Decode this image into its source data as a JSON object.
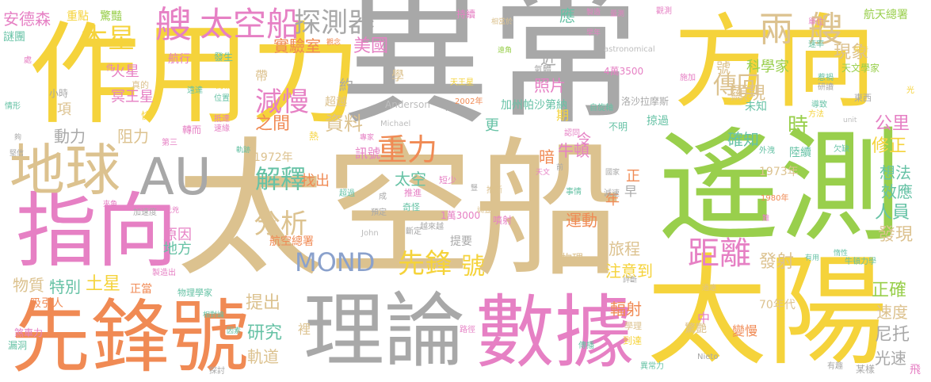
{
  "palette": {
    "yellow": "#f5d33b",
    "gray": "#a8a8a8",
    "green": "#99cf4c",
    "tan": "#dcc28f",
    "orange": "#f08a54",
    "pink": "#e680c4",
    "blue": "#8aa1cc",
    "teal": "#66c2a5",
    "lightgray": "#bdbdbd",
    "lightyellow": "#ffe36a"
  },
  "words": [
    {
      "text": "異常",
      "color": "gray"
    },
    {
      "text": "作用力",
      "color": "yellow"
    },
    {
      "text": "太空船",
      "color": "tan"
    },
    {
      "text": "遙測",
      "color": "green"
    },
    {
      "text": "方向",
      "color": "yellow"
    },
    {
      "text": "太陽",
      "color": "yellow"
    },
    {
      "text": "先鋒號",
      "color": "orange"
    },
    {
      "text": "理論",
      "color": "gray"
    },
    {
      "text": "數據",
      "color": "pink"
    },
    {
      "text": "指向",
      "color": "pink"
    },
    {
      "text": "地球",
      "color": "tan"
    },
    {
      "text": "AU",
      "color": "gray"
    },
    {
      "text": "艘",
      "color": "pink"
    },
    {
      "text": "太空船",
      "color": "pink"
    },
    {
      "text": "探測器",
      "color": "gray"
    },
    {
      "text": "兩艘",
      "color": "tan"
    },
    {
      "text": "木星",
      "color": "yellow"
    },
    {
      "text": "MOND",
      "color": "blue"
    },
    {
      "text": "先鋒",
      "color": "yellow"
    },
    {
      "text": "號",
      "color": "yellow"
    },
    {
      "text": "距離",
      "color": "pink"
    },
    {
      "text": "減慢",
      "color": "pink"
    },
    {
      "text": "重力",
      "color": "orange"
    },
    {
      "text": "解釋",
      "color": "teal"
    },
    {
      "text": "分析",
      "color": "tan"
    },
    {
      "text": "傳回",
      "color": "tan"
    },
    {
      "text": "安德森",
      "color": "pink"
    },
    {
      "text": "美國",
      "color": "pink"
    },
    {
      "text": "實驗室",
      "color": "orange"
    },
    {
      "text": "現象",
      "color": "tan"
    },
    {
      "text": "科學家",
      "color": "green"
    },
    {
      "text": "顯現",
      "color": "tan"
    },
    {
      "text": "時",
      "color": "green"
    },
    {
      "text": "公里",
      "color": "pink"
    },
    {
      "text": "確知",
      "color": "teal"
    },
    {
      "text": "修正",
      "color": "yellow"
    },
    {
      "text": "想法",
      "color": "teal"
    },
    {
      "text": "效應",
      "color": "teal"
    },
    {
      "text": "人員",
      "color": "teal"
    },
    {
      "text": "發現",
      "color": "tan"
    },
    {
      "text": "發射",
      "color": "tan"
    },
    {
      "text": "正確",
      "color": "green"
    },
    {
      "text": "速度",
      "color": "tan"
    },
    {
      "text": "尼托",
      "color": "gray"
    },
    {
      "text": "光速",
      "color": "gray"
    },
    {
      "text": "旅程",
      "color": "tan"
    },
    {
      "text": "運動",
      "color": "orange"
    },
    {
      "text": "注意到",
      "color": "yellow"
    },
    {
      "text": "輻射",
      "color": "orange"
    },
    {
      "text": "物質",
      "color": "tan"
    },
    {
      "text": "特別",
      "color": "teal"
    },
    {
      "text": "土星",
      "color": "yellow"
    },
    {
      "text": "吸引人",
      "color": "orange"
    },
    {
      "text": "提出",
      "color": "tan"
    },
    {
      "text": "研究",
      "color": "teal"
    },
    {
      "text": "軌道",
      "color": "tan"
    },
    {
      "text": "原因",
      "color": "pink"
    },
    {
      "text": "地方",
      "color": "teal"
    },
    {
      "text": "阻力",
      "color": "tan"
    },
    {
      "text": "動力",
      "color": "gray"
    },
    {
      "text": "資料",
      "color": "tan"
    },
    {
      "text": "之間",
      "color": "orange"
    },
    {
      "text": "找出",
      "color": "orange"
    },
    {
      "text": "太空",
      "color": "teal"
    },
    {
      "text": "牛頓",
      "color": "pink"
    },
    {
      "text": "照片",
      "color": "pink"
    },
    {
      "text": "火星",
      "color": "pink"
    },
    {
      "text": "冥王星",
      "color": "pink"
    },
    {
      "text": "1972年",
      "color": "tan"
    },
    {
      "text": "1973年",
      "color": "tan"
    },
    {
      "text": "70年代",
      "color": "tan"
    },
    {
      "text": "航空總署",
      "color": "orange"
    },
    {
      "text": "訊號",
      "color": "pink"
    },
    {
      "text": "航天總署",
      "color": "green"
    },
    {
      "text": "天文學家",
      "color": "green"
    },
    {
      "text": "Anderson",
      "color": "lightgray"
    },
    {
      "text": "1萬3000",
      "color": "pink"
    },
    {
      "text": "4萬3500",
      "color": "pink"
    },
    {
      "text": "物理",
      "color": "tan"
    },
    {
      "text": "項",
      "color": "tan"
    },
    {
      "text": "超越",
      "color": "tan"
    },
    {
      "text": "約",
      "color": "gray"
    },
    {
      "text": "學",
      "color": "tan"
    },
    {
      "text": "近",
      "color": "gray"
    },
    {
      "text": "暗",
      "color": "orange"
    },
    {
      "text": "更",
      "color": "teal"
    },
    {
      "text": "令",
      "color": "pink"
    },
    {
      "text": "年",
      "color": "orange"
    },
    {
      "text": "正",
      "color": "orange"
    },
    {
      "text": "早",
      "color": "gray"
    },
    {
      "text": "中",
      "color": "pink"
    },
    {
      "text": "裡",
      "color": "tan"
    },
    {
      "text": "應",
      "color": "teal"
    },
    {
      "text": "帶",
      "color": "tan"
    },
    {
      "text": "航行",
      "color": "pink"
    },
    {
      "text": "發生",
      "color": "teal"
    },
    {
      "text": "期",
      "color": "yellow"
    },
    {
      "text": "號",
      "color": "tan"
    },
    {
      "text": "未知",
      "color": "teal"
    },
    {
      "text": "陸續",
      "color": "teal"
    },
    {
      "text": "掠過",
      "color": "teal"
    },
    {
      "text": "重點",
      "color": "yellow"
    },
    {
      "text": "驚豔",
      "color": "green"
    },
    {
      "text": "持續",
      "color": "pink"
    },
    {
      "text": "謎團",
      "color": "teal"
    },
    {
      "text": "變慢",
      "color": "orange"
    },
    {
      "text": "驚艷",
      "color": "tan"
    },
    {
      "text": "正當",
      "color": "orange"
    },
    {
      "text": "煞車力",
      "color": "pink"
    },
    {
      "text": "漏洞",
      "color": "teal"
    },
    {
      "text": "不明",
      "color": "teal"
    },
    {
      "text": "加州帕沙第納",
      "color": "teal"
    },
    {
      "text": "洛沙拉摩斯",
      "color": "gray"
    },
    {
      "text": "astronomical",
      "color": "lightgray"
    },
    {
      "text": "Michael",
      "color": "lightgray"
    },
    {
      "text": "John",
      "color": "lightgray"
    },
    {
      "text": "Nieto",
      "color": "gray"
    },
    {
      "text": "異常力",
      "color": "teal"
    },
    {
      "text": "某樣",
      "color": "gray"
    },
    {
      "text": "1980年",
      "color": "orange"
    },
    {
      "text": "天王星",
      "color": "yellow"
    },
    {
      "text": "2002年",
      "color": "orange"
    },
    {
      "text": "小時",
      "color": "gray"
    },
    {
      "text": "情形",
      "color": "teal"
    },
    {
      "text": "討論",
      "color": "yellow"
    },
    {
      "text": "遠達",
      "color": "teal"
    },
    {
      "text": "預定",
      "color": "gray"
    },
    {
      "text": "推進",
      "color": "pink"
    },
    {
      "text": "奇怪",
      "color": "teal"
    },
    {
      "text": "短少",
      "color": "pink"
    },
    {
      "text": "推斷",
      "color": "tan"
    },
    {
      "text": "斷定",
      "color": "gray"
    },
    {
      "text": "越來越",
      "color": "gray"
    },
    {
      "text": "提要",
      "color": "gray"
    },
    {
      "text": "噴射",
      "color": "pink"
    },
    {
      "text": "事情",
      "color": "teal"
    },
    {
      "text": "減速",
      "color": "gray"
    },
    {
      "text": "外洩",
      "color": "teal"
    },
    {
      "text": "欠缺",
      "color": "teal"
    },
    {
      "text": "有趣",
      "color": "gray"
    },
    {
      "text": "飛",
      "color": "pink"
    },
    {
      "text": "轉而",
      "color": "pink"
    },
    {
      "text": "快",
      "color": "yellow"
    },
    {
      "text": "第三",
      "color": "pink"
    },
    {
      "text": "熱",
      "color": "yellow"
    },
    {
      "text": "專家",
      "color": "pink"
    },
    {
      "text": "加速度",
      "color": "gray"
    },
    {
      "text": "製造出",
      "color": "pink"
    },
    {
      "text": "相對論",
      "color": "teal"
    },
    {
      "text": "路徑",
      "color": "pink"
    },
    {
      "text": "因素",
      "color": "teal"
    },
    {
      "text": "探討",
      "color": "gray"
    },
    {
      "text": "到達",
      "color": "yellow"
    },
    {
      "text": "學理",
      "color": "tan"
    },
    {
      "text": "物理學家",
      "color": "teal"
    },
    {
      "text": "評斷",
      "color": "gray"
    },
    {
      "text": "牛頓力學",
      "color": "teal"
    },
    {
      "text": "導致",
      "color": "teal"
    },
    {
      "text": "方法",
      "color": "yellow"
    },
    {
      "text": "東西",
      "color": "gray"
    },
    {
      "text": "研讀",
      "color": "gray"
    },
    {
      "text": "惹禍",
      "color": "teal"
    },
    {
      "text": "速率",
      "color": "teal"
    },
    {
      "text": "飛行",
      "color": "yellow"
    },
    {
      "text": "單位",
      "color": "pink"
    },
    {
      "text": "量測",
      "color": "pink"
    },
    {
      "text": "製造",
      "color": "pink"
    },
    {
      "text": "相當於",
      "color": "tan"
    },
    {
      "text": "早年",
      "color": "pink"
    },
    {
      "text": "遠角",
      "color": "green"
    },
    {
      "text": "位置",
      "color": "teal"
    },
    {
      "text": "抵達",
      "color": "pink"
    },
    {
      "text": "速緣",
      "color": "pink"
    },
    {
      "text": "元兇",
      "color": "pink"
    },
    {
      "text": "夾角",
      "color": "pink"
    },
    {
      "text": "堅信",
      "color": "gray"
    },
    {
      "text": "觀念",
      "color": "orange"
    },
    {
      "text": "真的",
      "color": "tan"
    },
    {
      "text": "軌跡",
      "color": "teal"
    },
    {
      "text": "認同",
      "color": "pink"
    },
    {
      "text": "自旋軸",
      "color": "teal"
    },
    {
      "text": "天文",
      "color": "pink"
    },
    {
      "text": "國家",
      "color": "gray"
    },
    {
      "text": "調查",
      "color": "tan"
    },
    {
      "text": "過遠",
      "color": "tan"
    },
    {
      "text": "超過",
      "color": "teal"
    },
    {
      "text": "成",
      "color": "gray"
    },
    {
      "text": "豎",
      "color": "gray"
    },
    {
      "text": "前",
      "color": "gray"
    },
    {
      "text": "夠",
      "color": "gray"
    },
    {
      "text": "件",
      "color": "pink"
    },
    {
      "text": "處",
      "color": "pink"
    },
    {
      "text": "光",
      "color": "yellow"
    },
    {
      "text": "難",
      "color": "pink"
    },
    {
      "text": "惰性",
      "color": "teal"
    },
    {
      "text": "有用",
      "color": "teal"
    },
    {
      "text": "unit",
      "color": "lightgray"
    },
    {
      "text": "M",
      "color": "gray"
    },
    {
      "text": "氣體",
      "color": "gray"
    },
    {
      "text": "施加",
      "color": "pink"
    },
    {
      "text": "觀測",
      "color": "pink"
    },
    {
      "text": "傳播",
      "color": "teal"
    }
  ]
}
